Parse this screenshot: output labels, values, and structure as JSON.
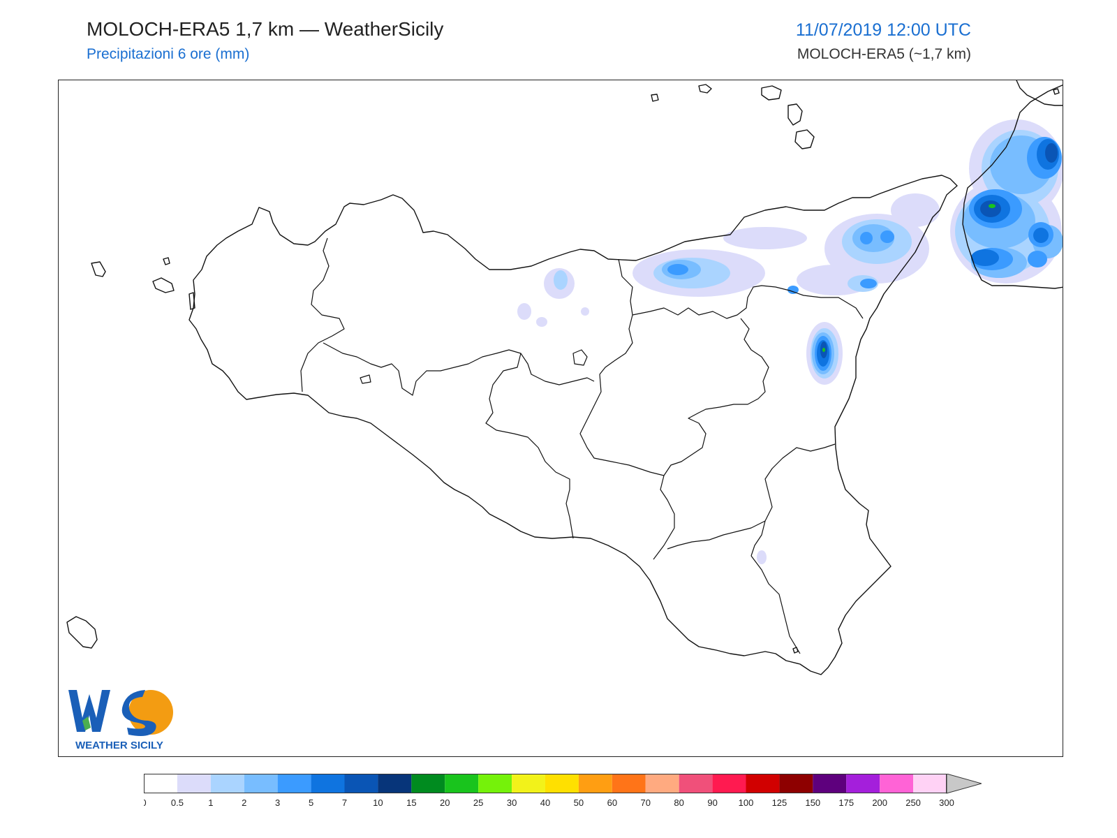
{
  "header": {
    "title": "MOLOCH-ERA5 1,7 km — WeatherSicily",
    "subtitle": "Precipitazioni 6 ore (mm)",
    "datetime": "11/07/2019 12:00 UTC",
    "model": "MOLOCH-ERA5 (~1,7 km)"
  },
  "logo": {
    "letters": "WS",
    "caption": "WEATHER SICILY"
  },
  "colorbar": {
    "ticks": [
      "0",
      "0.5",
      "1",
      "2",
      "3",
      "5",
      "7",
      "10",
      "15",
      "20",
      "25",
      "30",
      "40",
      "50",
      "60",
      "70",
      "80",
      "90",
      "100",
      "125",
      "150",
      "175",
      "200",
      "250",
      "300"
    ],
    "colors": [
      "#ffffff",
      "#dcdcfa",
      "#aad4ff",
      "#78bdff",
      "#3b9bff",
      "#0f74e0",
      "#0a55b5",
      "#07357a",
      "#008b1f",
      "#19c41d",
      "#75f20a",
      "#f2f21a",
      "#ffe000",
      "#ff9e12",
      "#ff7418",
      "#ffaa80",
      "#f0507a",
      "#ff1a50",
      "#d10000",
      "#8e0000",
      "#5e007d",
      "#a41fdb",
      "#ff63d6",
      "#ffd2f5"
    ],
    "extend_color": "#c8c8c8"
  },
  "icons": {
    "map": "sicily-map",
    "logo": "weathersicily-logo"
  }
}
